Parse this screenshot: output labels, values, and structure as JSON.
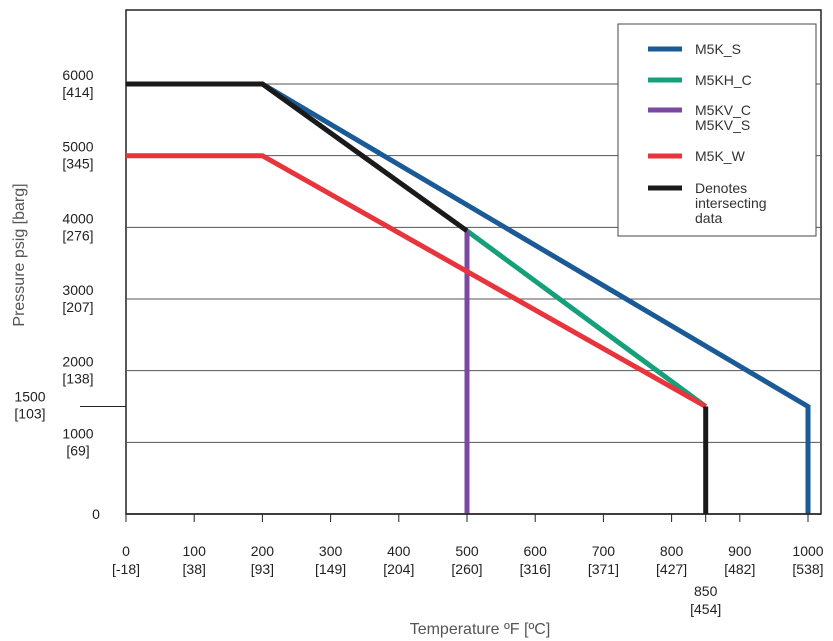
{
  "chart_data": {
    "type": "line",
    "xlabel": "Temperature ºF [ºC]",
    "ylabel": "Pressure psig [barg]",
    "xlim": [
      0,
      1000
    ],
    "ylim": [
      0,
      6000
    ],
    "x_ticks": [
      {
        "value": 0,
        "label": "0",
        "sub": "[-18]"
      },
      {
        "value": 100,
        "label": "100",
        "sub": "[38]"
      },
      {
        "value": 200,
        "label": "200",
        "sub": "[93]"
      },
      {
        "value": 300,
        "label": "300",
        "sub": "[149]"
      },
      {
        "value": 400,
        "label": "400",
        "sub": "[204]"
      },
      {
        "value": 500,
        "label": "500",
        "sub": "[260]"
      },
      {
        "value": 600,
        "label": "600",
        "sub": "[316]"
      },
      {
        "value": 700,
        "label": "700",
        "sub": "[371]"
      },
      {
        "value": 800,
        "label": "800",
        "sub": "[427]"
      },
      {
        "value": 900,
        "label": "900",
        "sub": "[482]"
      },
      {
        "value": 1000,
        "label": "1000",
        "sub": "[538]"
      }
    ],
    "x_extra_tick": {
      "value": 850,
      "label": "850",
      "sub": "[454]"
    },
    "y_ticks": [
      {
        "value": 0,
        "label": "0",
        "sub": ""
      },
      {
        "value": 1000,
        "label": "1000",
        "sub": "[69]"
      },
      {
        "value": 2000,
        "label": "2000",
        "sub": "[138]"
      },
      {
        "value": 3000,
        "label": "3000",
        "sub": "[207]"
      },
      {
        "value": 4000,
        "label": "4000",
        "sub": "[276]"
      },
      {
        "value": 5000,
        "label": "5000",
        "sub": "[345]"
      },
      {
        "value": 6000,
        "label": "6000",
        "sub": "[414]"
      }
    ],
    "y_extra_tick": {
      "value": 1500,
      "label": "1500",
      "sub": "[103]"
    },
    "gridlines": [
      1000,
      2000,
      3000,
      4000,
      5000,
      6000
    ],
    "legend_position": "top-right",
    "series": [
      {
        "name": "M5K_S",
        "color": "#1a5a96",
        "points": [
          [
            0,
            6000
          ],
          [
            200,
            6000
          ],
          [
            1000,
            1500
          ],
          [
            1000,
            0
          ]
        ]
      },
      {
        "name": "M5KH_C",
        "color": "#16a07a",
        "points": [
          [
            500,
            3950
          ],
          [
            850,
            1500
          ]
        ]
      },
      {
        "name": "M5KV_C\nM5KV_S",
        "color": "#7b4aa0",
        "points": [
          [
            500,
            3950
          ],
          [
            500,
            0
          ]
        ]
      },
      {
        "name": "M5K_W",
        "color": "#e8343c",
        "points": [
          [
            0,
            5000
          ],
          [
            200,
            5000
          ],
          [
            850,
            1500
          ]
        ]
      },
      {
        "name": "Denotes\nintersecting\ndata",
        "color": "#1a1a1a",
        "points": [
          [
            0,
            6000
          ],
          [
            200,
            6000
          ],
          [
            500,
            3950
          ]
        ]
      },
      {
        "name": "",
        "color": "#1a1a1a",
        "points": [
          [
            850,
            1500
          ],
          [
            850,
            0
          ]
        ]
      }
    ],
    "legend": [
      {
        "label": "M5K_S",
        "color": "#1a5a96"
      },
      {
        "label": "M5KH_C",
        "color": "#16a07a"
      },
      {
        "label": "M5KV_C\nM5KV_S",
        "color": "#7b4aa0"
      },
      {
        "label": "M5K_W",
        "color": "#e8343c"
      },
      {
        "label": "Denotes\nintersecting\ndata",
        "color": "#1a1a1a"
      }
    ]
  }
}
